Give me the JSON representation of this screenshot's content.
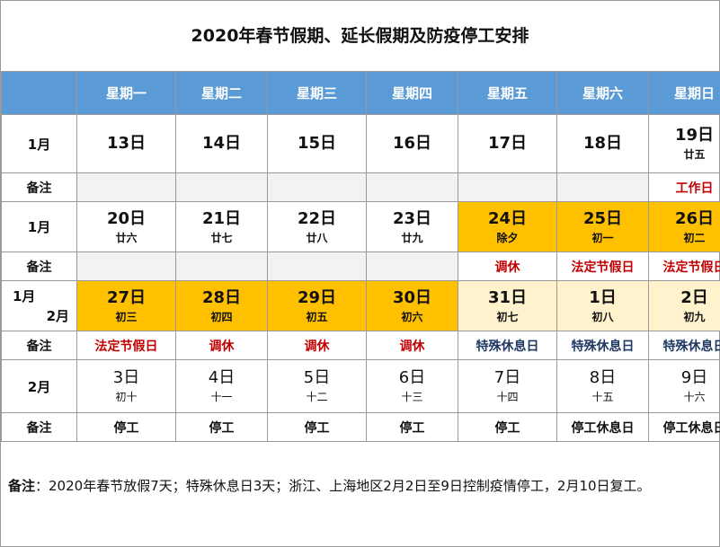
{
  "title": "2020年春节假期、延长假期及防疫停工安排",
  "weekdays": [
    "星期一",
    "星期二",
    "星期三",
    "星期四",
    "星期五",
    "星期六",
    "星期日"
  ],
  "note_label": "备注",
  "rows": [
    {
      "month": "1月",
      "days": [
        {
          "day": "13日",
          "lunar": ""
        },
        {
          "day": "14日",
          "lunar": ""
        },
        {
          "day": "15日",
          "lunar": ""
        },
        {
          "day": "16日",
          "lunar": ""
        },
        {
          "day": "17日",
          "lunar": ""
        },
        {
          "day": "18日",
          "lunar": ""
        },
        {
          "day": "19日",
          "lunar": "廿五"
        }
      ],
      "notes": [
        "",
        "",
        "",
        "",
        "",
        "",
        "工作日"
      ]
    },
    {
      "month": "1月",
      "days": [
        {
          "day": "20日",
          "lunar": "廿六"
        },
        {
          "day": "21日",
          "lunar": "廿七"
        },
        {
          "day": "22日",
          "lunar": "廿八"
        },
        {
          "day": "23日",
          "lunar": "廿九"
        },
        {
          "day": "24日",
          "lunar": "除夕"
        },
        {
          "day": "25日",
          "lunar": "初一"
        },
        {
          "day": "26日",
          "lunar": "初二"
        }
      ],
      "notes": [
        "",
        "",
        "",
        "",
        "调休",
        "法定节假日",
        "法定节假日"
      ]
    },
    {
      "month_a": "1月",
      "month_b": "2月",
      "days": [
        {
          "day": "27日",
          "lunar": "初三"
        },
        {
          "day": "28日",
          "lunar": "初四"
        },
        {
          "day": "29日",
          "lunar": "初五"
        },
        {
          "day": "30日",
          "lunar": "初六"
        },
        {
          "day": "31日",
          "lunar": "初七"
        },
        {
          "day": "1日",
          "lunar": "初八"
        },
        {
          "day": "2日",
          "lunar": "初九"
        }
      ],
      "notes": [
        "法定节假日",
        "调休",
        "调休",
        "调休",
        "特殊休息日",
        "特殊休息日",
        "特殊休息日"
      ]
    },
    {
      "month": "2月",
      "days": [
        {
          "day": "3日",
          "lunar": "初十"
        },
        {
          "day": "4日",
          "lunar": "十一"
        },
        {
          "day": "5日",
          "lunar": "十二"
        },
        {
          "day": "6日",
          "lunar": "十三"
        },
        {
          "day": "7日",
          "lunar": "十四"
        },
        {
          "day": "8日",
          "lunar": "十五"
        },
        {
          "day": "9日",
          "lunar": "十六"
        }
      ],
      "notes": [
        "停工",
        "停工",
        "停工",
        "停工",
        "停工",
        "停工休息日",
        "停工休息日"
      ]
    }
  ],
  "footnote": {
    "label": "备注",
    "text": "：2020年春节放假7天；特殊休息日3天；浙江、上海地区2月2日至9日控制疫情停工，2月10日复工。"
  },
  "colors": {
    "header_bg": "#5b9bd5",
    "holiday_gold": "#ffc000",
    "special_cream": "#fff2cc",
    "note_red": "#c00000",
    "note_blue": "#1f3864"
  }
}
